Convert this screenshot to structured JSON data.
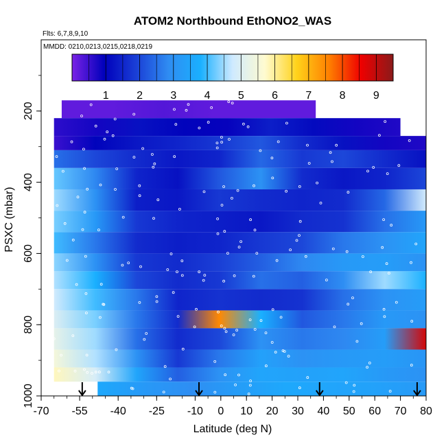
{
  "chart_data": {
    "type": "heatmap",
    "title": "ATOM2 Northbound EthONO2_WAS",
    "flights_note": "Flts: 6,7,8,9,10",
    "dates_note": "MMDD: 0210,0213,0215,0218,0219",
    "xlabel": "Latitude (deg N)",
    "ylabel": "PSXC (mbar)",
    "xlim": [
      -70,
      80
    ],
    "ylim": [
      1000,
      0
    ],
    "x_ticks": [
      -70,
      -55,
      -40,
      -25,
      -10,
      0,
      10,
      20,
      30,
      40,
      50,
      60,
      70,
      80
    ],
    "y_ticks": [
      200,
      400,
      600,
      800,
      1000
    ],
    "colorbar": {
      "min": 0,
      "max": 9.5,
      "ticks": [
        1,
        2,
        3,
        4,
        5,
        6,
        7,
        8,
        9
      ],
      "colors": [
        "#7a22e6",
        "#0000bb",
        "#1a3fd6",
        "#2f8cf2",
        "#1ab0ff",
        "#cfeaff",
        "#fffbd0",
        "#ffd21a",
        "#ff8000",
        "#ee0000",
        "#8b1a1a"
      ]
    },
    "flight_markers_lat": [
      -54,
      -8.5,
      38.5,
      76.5
    ],
    "layers": [
      {
        "p_top": 170,
        "p_bot": 220,
        "x0": -62,
        "x1": 37,
        "values": [
          0.2,
          0.2,
          0.3,
          0.2,
          0.2,
          0.2
        ]
      },
      {
        "p_top": 220,
        "p_bot": 270,
        "x0": -65,
        "x1": 70,
        "values": [
          0.6,
          0.8,
          1.2,
          1.0,
          0.9,
          1.4,
          1.1,
          0.8,
          0.7
        ]
      },
      {
        "p_top": 270,
        "p_bot": 310,
        "x0": -65,
        "x1": 80,
        "values": [
          0.5,
          1.0,
          1.3,
          1.5,
          1.8,
          2.2,
          1.6,
          1.2,
          0.8,
          0.7
        ]
      },
      {
        "p_top": 310,
        "p_bot": 360,
        "x0": -65,
        "x1": 80,
        "values": [
          2.5,
          2.0,
          1.6,
          1.3,
          1.5,
          2.4,
          1.8,
          2.0,
          1.6,
          1.2
        ]
      },
      {
        "p_top": 360,
        "p_bot": 420,
        "x0": -65,
        "x1": 80,
        "values": [
          4.2,
          2.8,
          1.5,
          1.2,
          2.2,
          3.0,
          1.6,
          1.3,
          1.5,
          2.0
        ]
      },
      {
        "p_top": 420,
        "p_bot": 480,
        "x0": -65,
        "x1": 80,
        "values": [
          4.5,
          3.0,
          1.4,
          1.3,
          1.8,
          1.6,
          1.5,
          1.6,
          2.4,
          4.8
        ]
      },
      {
        "p_top": 480,
        "p_bot": 540,
        "x0": -65,
        "x1": 80,
        "values": [
          4.3,
          3.2,
          1.8,
          1.5,
          1.4,
          1.3,
          1.6,
          1.7,
          2.5,
          3.2
        ]
      },
      {
        "p_top": 540,
        "p_bot": 600,
        "x0": -65,
        "x1": 80,
        "values": [
          4.0,
          2.6,
          1.6,
          1.4,
          1.5,
          1.8,
          2.0,
          2.6,
          3.0,
          3.5
        ]
      },
      {
        "p_top": 600,
        "p_bot": 650,
        "x0": -65,
        "x1": 80,
        "values": [
          4.4,
          3.0,
          1.8,
          1.6,
          1.9,
          2.3,
          2.8,
          3.2,
          3.3,
          3.0
        ]
      },
      {
        "p_top": 650,
        "p_bot": 700,
        "x0": -65,
        "x1": 80,
        "values": [
          4.6,
          3.8,
          2.0,
          1.6,
          1.8,
          2.5,
          2.3,
          2.9,
          4.5,
          3.8
        ]
      },
      {
        "p_top": 700,
        "p_bot": 760,
        "x0": -65,
        "x1": 80,
        "values": [
          4.8,
          4.0,
          2.6,
          1.5,
          1.7,
          1.6,
          1.7,
          2.5,
          3.0,
          3.3
        ]
      },
      {
        "p_top": 760,
        "p_bot": 810,
        "x0": -65,
        "x1": 80,
        "values": [
          5.0,
          4.3,
          2.6,
          1.6,
          7.5,
          3.8,
          2.2,
          2.6,
          3.2,
          3.0
        ]
      },
      {
        "p_top": 810,
        "p_bot": 870,
        "x0": -65,
        "x1": 80,
        "values": [
          5.2,
          4.5,
          2.5,
          1.6,
          2.0,
          3.0,
          2.6,
          2.8,
          3.3,
          8.8
        ]
      },
      {
        "p_top": 870,
        "p_bot": 920,
        "x0": -65,
        "x1": 80,
        "values": [
          5.5,
          4.6,
          3.0,
          1.8,
          2.6,
          3.4,
          3.0,
          3.2,
          3.3,
          3.1
        ]
      },
      {
        "p_top": 920,
        "p_bot": 960,
        "x0": -65,
        "x1": 80,
        "values": [
          5.8,
          4.9,
          3.5,
          2.3,
          3.0,
          3.5,
          3.4,
          3.5,
          3.2,
          3.0
        ]
      },
      {
        "p_top": 960,
        "p_bot": 1000,
        "x0": -48,
        "x1": 80,
        "values": [
          3.6,
          3.2,
          2.9,
          3.3,
          3.6,
          3.5,
          3.4,
          3.2
        ]
      }
    ]
  }
}
